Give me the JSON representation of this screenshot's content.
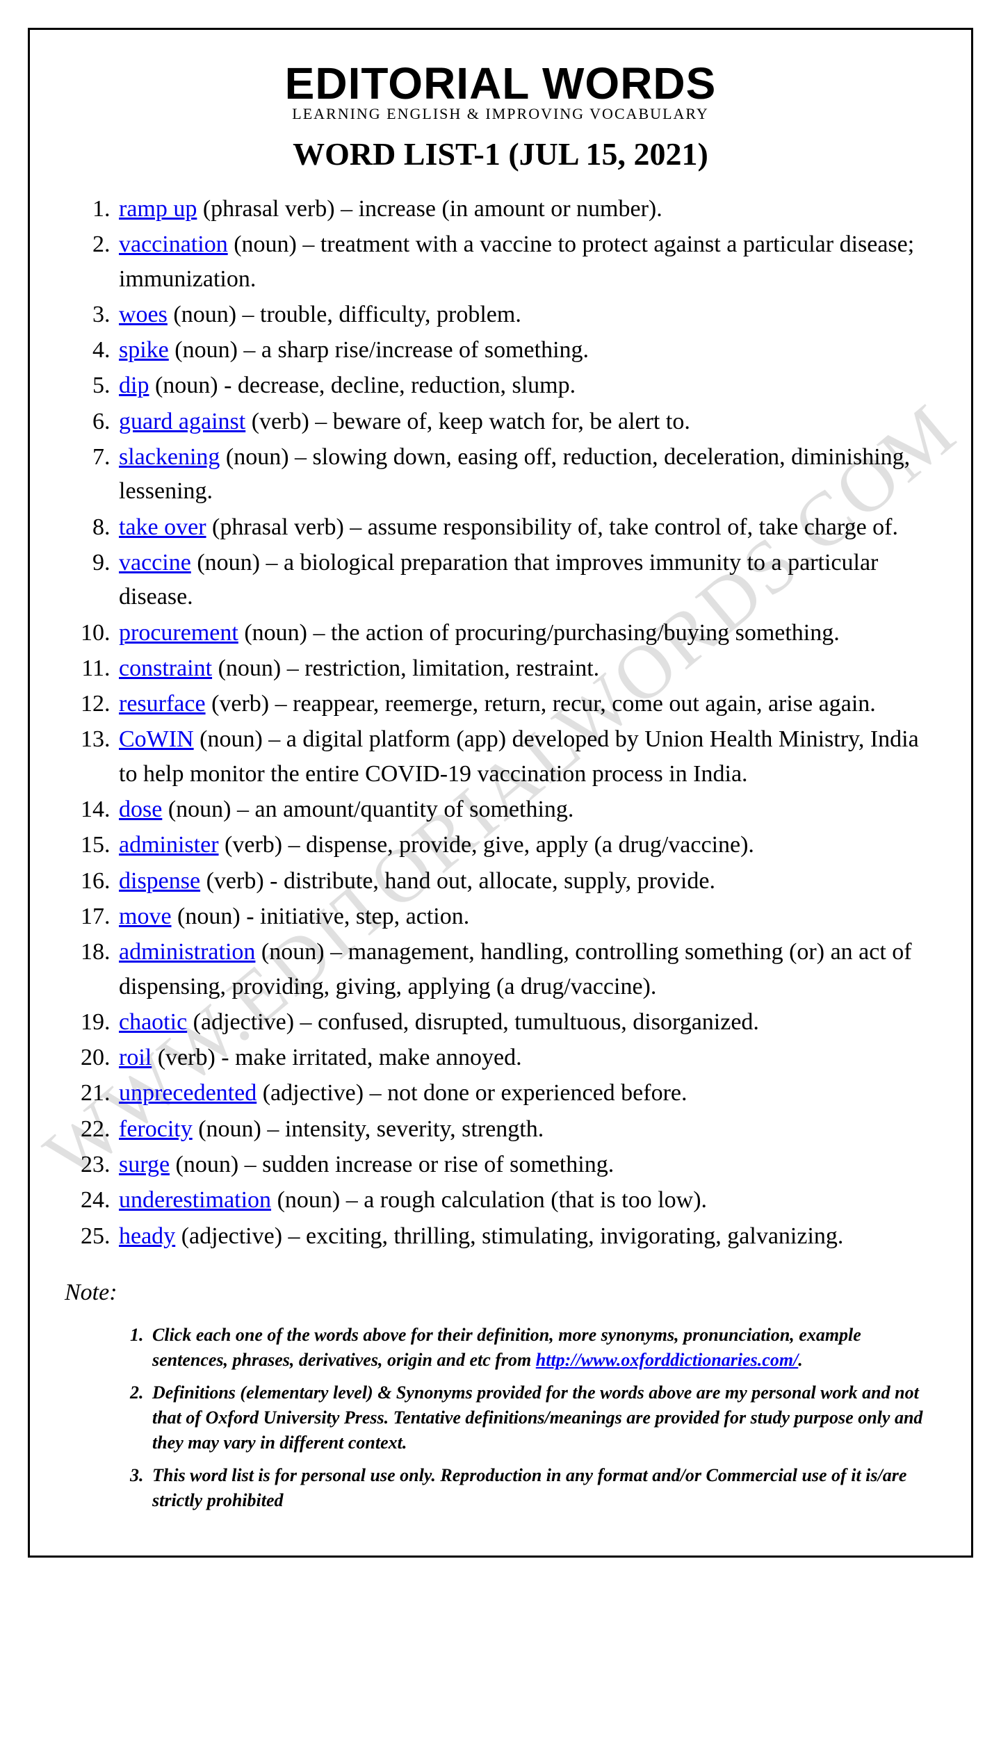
{
  "brand": {
    "title": "EDITORIAL WORDS",
    "subtitle": "LEARNING ENGLISH & IMPROVING VOCABULARY"
  },
  "list_title": "WORD LIST-1 (JUL 15, 2021)",
  "watermark": "WWW.EDITORIALWORDS.COM",
  "words": [
    {
      "term": "ramp up",
      "pos": "phrasal verb",
      "def": "increase (in amount or number)."
    },
    {
      "term": "vaccination",
      "pos": "noun",
      "def": "treatment with a vaccine to protect against a particular disease; immunization."
    },
    {
      "term": "woes",
      "pos": "noun",
      "def": "trouble, difficulty, problem."
    },
    {
      "term": "spike",
      "pos": "noun",
      "def": "a sharp rise/increase of something."
    },
    {
      "term": "dip",
      "pos": "noun",
      "sep": "-",
      "def": "decrease, decline, reduction, slump."
    },
    {
      "term": "guard against",
      "pos": "verb",
      "def": "beware of, keep watch for, be alert to."
    },
    {
      "term": "slackening",
      "pos": "noun",
      "def": "slowing down, easing off, reduction, deceleration, diminishing, lessening."
    },
    {
      "term": "take over",
      "pos": "phrasal verb",
      "def": "assume responsibility of, take control of, take charge of."
    },
    {
      "term": "vaccine",
      "pos": "noun",
      "def": "a biological preparation that improves immunity to a particular disease."
    },
    {
      "term": "procurement",
      "pos": "noun",
      "def": "the action of procuring/purchasing/buying something."
    },
    {
      "term": "constraint",
      "pos": "noun",
      "def": "restriction, limitation, restraint."
    },
    {
      "term": "resurface",
      "pos": "verb",
      "def": "reappear, reemerge, return, recur, come out again, arise again."
    },
    {
      "term": "CoWIN",
      "pos": "noun",
      "def": "a digital platform (app) developed by Union Health Ministry, India to help monitor the entire COVID-19 vaccination process in India."
    },
    {
      "term": "dose",
      "pos": "noun",
      "def": "an amount/quantity of something."
    },
    {
      "term": "administer",
      "pos": "verb",
      "def": "dispense, provide, give, apply (a drug/vaccine)."
    },
    {
      "term": "dispense",
      "pos": "verb",
      "sep": "-",
      "def": "distribute, hand out, allocate, supply, provide."
    },
    {
      "term": "move",
      "pos": "noun",
      "sep": "-",
      "def": "initiative, step, action."
    },
    {
      "term": "administration",
      "pos": "noun",
      "def": "management, handling, controlling something (or) an act of dispensing, providing, giving, applying (a drug/vaccine)."
    },
    {
      "term": "chaotic",
      "pos": "adjective",
      "def": "confused, disrupted, tumultuous, disorganized."
    },
    {
      "term": "roil",
      "pos": "verb",
      "sep": "-",
      "def": "make irritated, make annoyed."
    },
    {
      "term": "unprecedented",
      "pos": "adjective",
      "def": "not done or experienced before."
    },
    {
      "term": "ferocity",
      "pos": "noun",
      "def": "intensity, severity, strength."
    },
    {
      "term": "surge",
      "pos": "noun",
      "def": "sudden increase or rise of something."
    },
    {
      "term": "underestimation",
      "pos": "noun",
      "def": "a rough calculation (that is too low)."
    },
    {
      "term": "heady",
      "pos": "adjective",
      "def": "exciting, thrilling, stimulating, invigorating, galvanizing."
    }
  ],
  "note_label": "Note:",
  "notes": [
    {
      "pre": "Click each one of the words above for their definition, more synonyms, pronunciation, example sentences, phrases, derivatives, origin and etc from ",
      "link": "http://www.oxforddictionaries.com/",
      "post": "."
    },
    {
      "pre": "Definitions (elementary level) & Synonyms provided for the words above are my personal work and not that of Oxford University Press. Tentative definitions/meanings are provided for study purpose only and they may vary in different context."
    },
    {
      "pre": "This word list is for personal use only. Reproduction in any format and/or Commercial use of it is/are strictly prohibited"
    }
  ],
  "colors": {
    "link": "#0000ee",
    "text": "#000000",
    "border": "#000000",
    "background": "#ffffff",
    "watermark": "rgba(0,0,0,0.12)"
  }
}
